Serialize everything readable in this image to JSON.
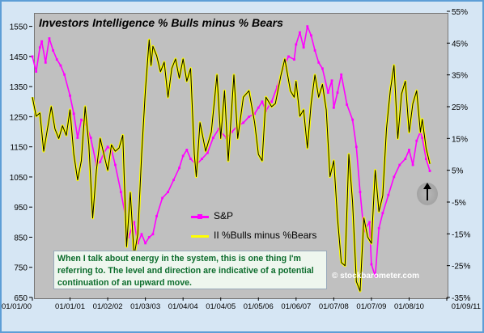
{
  "chart_data": {
    "type": "line",
    "title": "Investors Intelligence % Bulls minus % Bears",
    "x_ticks": [
      "01/01/00",
      "01/01/01",
      "01/02/02",
      "01/03/03",
      "01/04/04",
      "01/04/05",
      "01/05/06",
      "01/06/07",
      "01/07/08",
      "01/07/09",
      "01/08/10",
      "01/09/11"
    ],
    "y_left": {
      "ticks": [
        1550,
        1450,
        1350,
        1250,
        1150,
        1050,
        950,
        850,
        750,
        650
      ],
      "range": [
        650,
        1600
      ]
    },
    "y_right": {
      "ticks": [
        "55%",
        "45%",
        "35%",
        "25%",
        "15%",
        "5%",
        "-5%",
        "-15%",
        "-25%",
        "-35%"
      ],
      "range": [
        -35,
        55
      ]
    },
    "series": [
      {
        "name": "S&P",
        "color": "#ff00ff",
        "axis": "left",
        "points": [
          [
            0.0,
            1450
          ],
          [
            0.1,
            1400
          ],
          [
            0.2,
            1480
          ],
          [
            0.25,
            1500
          ],
          [
            0.35,
            1430
          ],
          [
            0.45,
            1510
          ],
          [
            0.55,
            1470
          ],
          [
            0.65,
            1440
          ],
          [
            0.75,
            1420
          ],
          [
            0.85,
            1390
          ],
          [
            1.0,
            1320
          ],
          [
            1.1,
            1260
          ],
          [
            1.2,
            1180
          ],
          [
            1.3,
            1240
          ],
          [
            1.4,
            1230
          ],
          [
            1.55,
            1180
          ],
          [
            1.7,
            1090
          ],
          [
            1.8,
            1100
          ],
          [
            1.9,
            1130
          ],
          [
            2.0,
            1150
          ],
          [
            2.1,
            1140
          ],
          [
            2.2,
            1090
          ],
          [
            2.35,
            1000
          ],
          [
            2.5,
            900
          ],
          [
            2.55,
            850
          ],
          [
            2.7,
            900
          ],
          [
            2.8,
            830
          ],
          [
            2.9,
            860
          ],
          [
            3.0,
            830
          ],
          [
            3.1,
            850
          ],
          [
            3.2,
            860
          ],
          [
            3.3,
            920
          ],
          [
            3.45,
            980
          ],
          [
            3.6,
            1000
          ],
          [
            3.75,
            1040
          ],
          [
            3.9,
            1080
          ],
          [
            4.0,
            1120
          ],
          [
            4.1,
            1140
          ],
          [
            4.2,
            1110
          ],
          [
            4.35,
            1090
          ],
          [
            4.5,
            1110
          ],
          [
            4.65,
            1130
          ],
          [
            4.8,
            1180
          ],
          [
            4.95,
            1210
          ],
          [
            5.0,
            1200
          ],
          [
            5.15,
            1180
          ],
          [
            5.3,
            1200
          ],
          [
            5.45,
            1220
          ],
          [
            5.6,
            1230
          ],
          [
            5.75,
            1250
          ],
          [
            5.9,
            1260
          ],
          [
            6.0,
            1280
          ],
          [
            6.1,
            1300
          ],
          [
            6.2,
            1270
          ],
          [
            6.35,
            1300
          ],
          [
            6.5,
            1350
          ],
          [
            6.65,
            1410
          ],
          [
            6.8,
            1450
          ],
          [
            6.95,
            1440
          ],
          [
            7.0,
            1490
          ],
          [
            7.1,
            1530
          ],
          [
            7.2,
            1480
          ],
          [
            7.3,
            1550
          ],
          [
            7.4,
            1520
          ],
          [
            7.5,
            1470
          ],
          [
            7.6,
            1430
          ],
          [
            7.7,
            1410
          ],
          [
            7.85,
            1330
          ],
          [
            7.95,
            1370
          ],
          [
            8.0,
            1280
          ],
          [
            8.1,
            1330
          ],
          [
            8.2,
            1390
          ],
          [
            8.35,
            1290
          ],
          [
            8.5,
            1240
          ],
          [
            8.6,
            1150
          ],
          [
            8.7,
            1000
          ],
          [
            8.8,
            870
          ],
          [
            8.95,
            900
          ],
          [
            9.0,
            760
          ],
          [
            9.1,
            720
          ],
          [
            9.2,
            880
          ],
          [
            9.3,
            930
          ],
          [
            9.45,
            990
          ],
          [
            9.6,
            1050
          ],
          [
            9.75,
            1090
          ],
          [
            9.9,
            1110
          ],
          [
            10.0,
            1140
          ],
          [
            10.1,
            1090
          ],
          [
            10.2,
            1170
          ],
          [
            10.3,
            1200
          ],
          [
            10.35,
            1180
          ],
          [
            10.45,
            1110
          ],
          [
            10.55,
            1070
          ]
        ]
      },
      {
        "name": "II %Bulls minus %Bears",
        "color": "#ffff00",
        "axis": "right",
        "points": [
          [
            0.0,
            28
          ],
          [
            0.1,
            22
          ],
          [
            0.2,
            23
          ],
          [
            0.3,
            11
          ],
          [
            0.4,
            18
          ],
          [
            0.5,
            25
          ],
          [
            0.6,
            18
          ],
          [
            0.7,
            15
          ],
          [
            0.8,
            19
          ],
          [
            0.9,
            16
          ],
          [
            1.0,
            24
          ],
          [
            1.1,
            10
          ],
          [
            1.2,
            2
          ],
          [
            1.3,
            8
          ],
          [
            1.4,
            25
          ],
          [
            1.5,
            13
          ],
          [
            1.6,
            -10
          ],
          [
            1.7,
            5
          ],
          [
            1.8,
            15
          ],
          [
            1.9,
            10
          ],
          [
            2.0,
            5
          ],
          [
            2.1,
            13
          ],
          [
            2.2,
            11
          ],
          [
            2.3,
            12
          ],
          [
            2.4,
            16
          ],
          [
            2.5,
            -19
          ],
          [
            2.6,
            -2
          ],
          [
            2.7,
            -22
          ],
          [
            2.8,
            -15
          ],
          [
            2.9,
            10
          ],
          [
            3.0,
            30
          ],
          [
            3.1,
            46
          ],
          [
            3.15,
            38
          ],
          [
            3.2,
            44
          ],
          [
            3.3,
            41
          ],
          [
            3.4,
            36
          ],
          [
            3.5,
            39
          ],
          [
            3.6,
            28
          ],
          [
            3.7,
            37
          ],
          [
            3.8,
            40
          ],
          [
            3.9,
            34
          ],
          [
            4.0,
            40
          ],
          [
            4.1,
            33
          ],
          [
            4.2,
            37
          ],
          [
            4.3,
            10
          ],
          [
            4.35,
            3
          ],
          [
            4.45,
            20
          ],
          [
            4.6,
            11
          ],
          [
            4.75,
            17
          ],
          [
            4.9,
            35
          ],
          [
            5.0,
            15
          ],
          [
            5.1,
            30
          ],
          [
            5.2,
            8
          ],
          [
            5.35,
            35
          ],
          [
            5.45,
            15
          ],
          [
            5.6,
            28
          ],
          [
            5.75,
            30
          ],
          [
            5.9,
            20
          ],
          [
            6.0,
            10
          ],
          [
            6.1,
            8
          ],
          [
            6.2,
            28
          ],
          [
            6.35,
            25
          ],
          [
            6.45,
            26
          ],
          [
            6.6,
            35
          ],
          [
            6.7,
            40
          ],
          [
            6.85,
            30
          ],
          [
            6.95,
            28
          ],
          [
            7.0,
            33
          ],
          [
            7.1,
            22
          ],
          [
            7.2,
            24
          ],
          [
            7.3,
            12
          ],
          [
            7.4,
            26
          ],
          [
            7.5,
            35
          ],
          [
            7.6,
            28
          ],
          [
            7.7,
            32
          ],
          [
            7.8,
            24
          ],
          [
            7.9,
            3
          ],
          [
            8.0,
            8
          ],
          [
            8.1,
            -10
          ],
          [
            8.2,
            -24
          ],
          [
            8.3,
            -25
          ],
          [
            8.4,
            10
          ],
          [
            8.5,
            -5
          ],
          [
            8.6,
            -30
          ],
          [
            8.7,
            -33
          ],
          [
            8.8,
            -10
          ],
          [
            8.9,
            -16
          ],
          [
            9.0,
            -18
          ],
          [
            9.1,
            5
          ],
          [
            9.2,
            -8
          ],
          [
            9.3,
            -3
          ],
          [
            9.4,
            18
          ],
          [
            9.5,
            30
          ],
          [
            9.6,
            38
          ],
          [
            9.7,
            15
          ],
          [
            9.8,
            29
          ],
          [
            9.9,
            33
          ],
          [
            10.0,
            17
          ],
          [
            10.1,
            26
          ],
          [
            10.2,
            30
          ],
          [
            10.3,
            17
          ],
          [
            10.35,
            21
          ],
          [
            10.45,
            12
          ],
          [
            10.55,
            7
          ]
        ]
      }
    ],
    "grid": false,
    "legend": "center-bottom",
    "annotation": "When I talk about energy in the system, this is one thing I'm referring to.  The level and direction are indicative of a potential continuation of an upward move.",
    "watermark": "© stockbarometer.com"
  }
}
